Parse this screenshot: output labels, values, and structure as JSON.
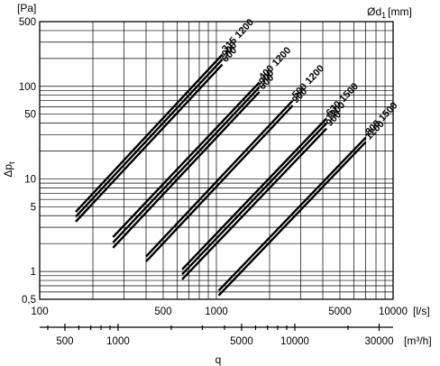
{
  "chart_data": {
    "type": "line",
    "scale": "log-log",
    "grid": true,
    "y_unit": "[Pa]",
    "y_label": "Δp",
    "y_label_sub": "t",
    "diameter_unit_prefix": "Ød",
    "diameter_unit_sub": "1",
    "diameter_unit_suffix": "[mm]",
    "x_unit_ls": "[l/s]",
    "x_unit_m3h": "[m³/h]",
    "x_label": "q",
    "xlim": [
      100,
      10000
    ],
    "ylim": [
      0.5,
      500
    ],
    "x_ticks_ls": [
      "100",
      "500",
      "1000",
      "5000",
      "10000"
    ],
    "x_ticks_ls_values": [
      100,
      500,
      1000,
      5000,
      10000
    ],
    "x_ticks_m3h": [
      "500",
      "1000",
      "5000",
      "10000",
      "30000"
    ],
    "x_ticks_m3h_values": [
      500,
      1000,
      5000,
      10000,
      30000
    ],
    "y_ticks": [
      "500",
      "100",
      "50",
      "10",
      "5",
      "1",
      "0,5"
    ],
    "y_ticks_values": [
      500,
      100,
      50,
      10,
      5,
      1,
      0.5
    ],
    "groups": [
      {
        "label": "315 1200",
        "labels": [
          "315 1200",
          "900",
          "600"
        ],
        "series": [
          {
            "name": "1200",
            "x": [
              160,
              1080
            ],
            "y": [
              4.4,
              220
            ]
          },
          {
            "name": "900",
            "x": [
              160,
              1080
            ],
            "y": [
              3.9,
              195
            ]
          },
          {
            "name": "600",
            "x": [
              160,
              1080
            ],
            "y": [
              3.45,
              172
            ]
          }
        ]
      },
      {
        "label": "400 1200",
        "labels": [
          "400 1200",
          "900",
          "600"
        ],
        "series": [
          {
            "name": "1200",
            "x": [
              260,
              1750
            ],
            "y": [
              2.35,
              110
            ]
          },
          {
            "name": "900",
            "x": [
              260,
              1750
            ],
            "y": [
              2.05,
              98
            ]
          },
          {
            "name": "600",
            "x": [
              260,
              1750
            ],
            "y": [
              1.8,
              87
            ]
          }
        ]
      },
      {
        "label": "500 1200",
        "labels": [
          "500 1200",
          "900"
        ],
        "series": [
          {
            "name": "1200",
            "x": [
              400,
              2700
            ],
            "y": [
              1.45,
              70
            ]
          },
          {
            "name": "900",
            "x": [
              400,
              2700
            ],
            "y": [
              1.28,
              62
            ]
          }
        ]
      },
      {
        "label": "630 1500",
        "labels": [
          "630 1500",
          "1200",
          "900"
        ],
        "series": [
          {
            "name": "1500",
            "x": [
              640,
              4200
            ],
            "y": [
              1.05,
              45
            ]
          },
          {
            "name": "1200",
            "x": [
              640,
              4200
            ],
            "y": [
              0.93,
              40
            ]
          },
          {
            "name": "900",
            "x": [
              640,
              4200
            ],
            "y": [
              0.82,
              35
            ]
          }
        ]
      },
      {
        "label": "800 1500",
        "labels": [
          "800 1500",
          "1200"
        ],
        "series": [
          {
            "name": "1500",
            "x": [
              1030,
              7000
            ],
            "y": [
              0.62,
              28
            ]
          },
          {
            "name": "1200",
            "x": [
              1030,
              7000
            ],
            "y": [
              0.55,
              25
            ]
          }
        ]
      }
    ]
  }
}
